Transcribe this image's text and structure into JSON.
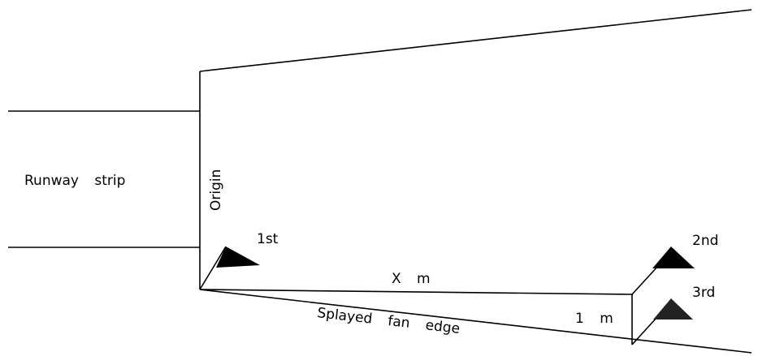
{
  "runway_label": "Runway strip",
  "origin_label": "Origin",
  "markers": [
    "1st",
    "2nd",
    "3rd"
  ],
  "dimensions": [
    "X m",
    "1 m"
  ],
  "edge_label": "Splayed fan edge"
}
